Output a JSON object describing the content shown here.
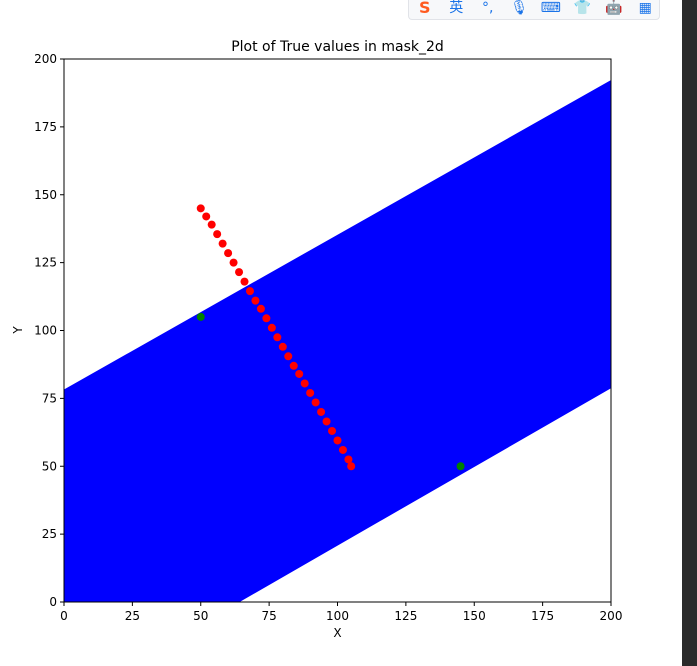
{
  "chart_data": {
    "type": "scatter",
    "title": "Plot of True values in mask_2d",
    "xlabel": "X",
    "ylabel": "Y",
    "xlim": [
      0,
      200
    ],
    "ylim": [
      0,
      200
    ],
    "xticks": [
      0,
      25,
      50,
      75,
      100,
      125,
      150,
      175,
      200
    ],
    "yticks": [
      0,
      25,
      50,
      75,
      100,
      125,
      150,
      175,
      200
    ],
    "grid": false,
    "legend": "none",
    "band_region": {
      "color": "#0000ff",
      "marker": "o",
      "upper_edge": [
        [
          0,
          77
        ],
        [
          200,
          191
        ]
      ],
      "lower_edge": [
        [
          62,
          0
        ],
        [
          200,
          80
        ]
      ]
    },
    "series": [
      {
        "color": "#ff0000",
        "marker": "o",
        "points": [
          [
            50,
            145
          ],
          [
            52,
            142
          ],
          [
            54,
            139
          ],
          [
            56,
            135.5
          ],
          [
            58,
            132
          ],
          [
            60,
            128.5
          ],
          [
            62,
            125
          ],
          [
            64,
            121.5
          ],
          [
            66,
            118
          ],
          [
            68,
            114.5
          ],
          [
            70,
            111
          ],
          [
            72,
            108
          ],
          [
            74,
            104.5
          ],
          [
            76,
            101
          ],
          [
            78,
            97.5
          ],
          [
            80,
            94
          ],
          [
            82,
            90.5
          ],
          [
            84,
            87
          ],
          [
            86,
            84
          ],
          [
            88,
            80.5
          ],
          [
            90,
            77
          ],
          [
            92,
            73.5
          ],
          [
            94,
            70
          ],
          [
            96,
            66.5
          ],
          [
            98,
            63
          ],
          [
            100,
            59.5
          ],
          [
            102,
            56
          ],
          [
            104,
            52.5
          ],
          [
            105,
            50
          ]
        ]
      },
      {
        "color": "#008000",
        "marker": "o",
        "points": [
          [
            50,
            105
          ],
          [
            145,
            50
          ]
        ]
      }
    ]
  },
  "ime_toolbar": {
    "items": [
      {
        "name": "sogou-logo-icon",
        "glyph": "S",
        "color": "#ff5a1f"
      },
      {
        "name": "english-mode-label",
        "glyph": "英",
        "color": "#1a73e8"
      },
      {
        "name": "punctuation-icon",
        "glyph": "°,",
        "color": "#1a73e8"
      },
      {
        "name": "microphone-icon",
        "glyph": "🎙",
        "color": "#1a73e8"
      },
      {
        "name": "keyboard-icon",
        "glyph": "⌨",
        "color": "#1a73e8"
      },
      {
        "name": "skin-icon",
        "glyph": "👕",
        "color": "#b04ad8"
      },
      {
        "name": "robot-icon",
        "glyph": "🤖",
        "color": "#1a73e8"
      },
      {
        "name": "toolbox-icon",
        "glyph": "▦",
        "color": "#1a73e8"
      }
    ]
  }
}
